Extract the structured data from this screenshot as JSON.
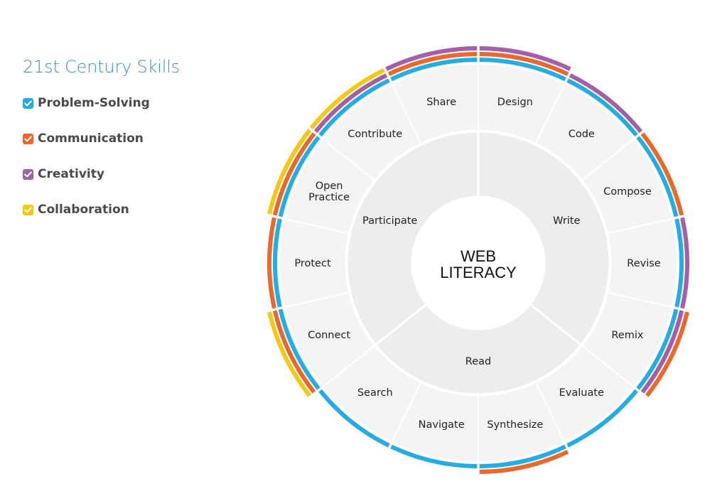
{
  "legend": {
    "title": "21st Century Skills",
    "items": [
      {
        "key": "problem_solving",
        "label": "Problem-Solving",
        "color": "#25ade3"
      },
      {
        "key": "communication",
        "label": "Communication",
        "color": "#e8692b"
      },
      {
        "key": "creativity",
        "label": "Creativity",
        "color": "#a55fa6"
      },
      {
        "key": "collaboration",
        "label": "Collaboration",
        "color": "#f5c717"
      }
    ]
  },
  "center": {
    "line1": "WEB",
    "line2": "LITERACY"
  },
  "strands": [
    "Write",
    "Read",
    "Participate"
  ],
  "skills": [
    {
      "name": "Design",
      "strand": "Write",
      "tags": [
        "problem_solving",
        "communication",
        "creativity"
      ]
    },
    {
      "name": "Code",
      "strand": "Write",
      "tags": [
        "problem_solving",
        "creativity"
      ]
    },
    {
      "name": "Compose",
      "strand": "Write",
      "tags": [
        "problem_solving",
        "communication"
      ]
    },
    {
      "name": "Revise",
      "strand": "Write",
      "tags": [
        "problem_solving",
        "creativity"
      ]
    },
    {
      "name": "Remix",
      "strand": "Write",
      "tags": [
        "problem_solving",
        "creativity",
        "communication"
      ]
    },
    {
      "name": "Evaluate",
      "strand": "Read",
      "tags": [
        "problem_solving"
      ]
    },
    {
      "name": "Synthesize",
      "strand": "Read",
      "tags": [
        "problem_solving",
        "communication"
      ]
    },
    {
      "name": "Navigate",
      "strand": "Read",
      "tags": [
        "problem_solving"
      ]
    },
    {
      "name": "Search",
      "strand": "Read",
      "tags": [
        "problem_solving"
      ]
    },
    {
      "name": "Connect",
      "strand": "Participate",
      "tags": [
        "problem_solving",
        "communication",
        "collaboration"
      ]
    },
    {
      "name": "Protect",
      "strand": "Participate",
      "tags": [
        "problem_solving",
        "communication"
      ]
    },
    {
      "name": "Open Practice",
      "strand": "Participate",
      "tags": [
        "problem_solving",
        "communication",
        "collaboration"
      ]
    },
    {
      "name": "Contribute",
      "strand": "Participate",
      "tags": [
        "problem_solving",
        "creativity",
        "collaboration"
      ]
    },
    {
      "name": "Share",
      "strand": "Participate",
      "tags": [
        "problem_solving",
        "communication",
        "creativity"
      ]
    }
  ]
}
